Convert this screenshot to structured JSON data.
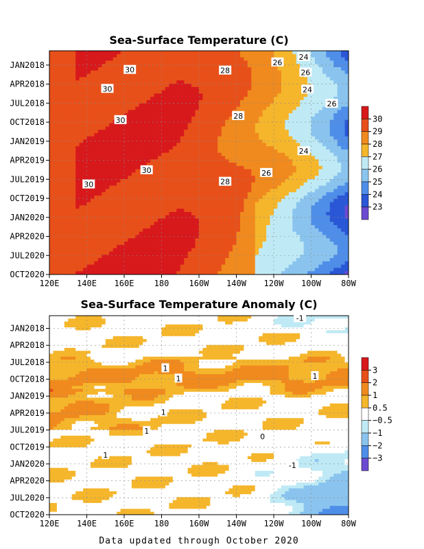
{
  "footer": "Data updated through October 2020",
  "chart_data": [
    {
      "type": "heatmap",
      "title": "Sea-Surface Temperature (C)",
      "x_ticks": [
        "120E",
        "140E",
        "160E",
        "180",
        "160W",
        "140W",
        "120W",
        "100W",
        "80W"
      ],
      "y_ticks": [
        "JAN2018",
        "APR2018",
        "JUL2018",
        "OCT2018",
        "JAN2019",
        "APR2019",
        "JUL2019",
        "OCT2019",
        "JAN2020",
        "APR2020",
        "JUL2020",
        "OCT2020"
      ],
      "colorbar": {
        "labels": [
          "30",
          "29",
          "28",
          "27",
          "26",
          "25",
          "24",
          "23"
        ],
        "colors": [
          "#d7191c",
          "#e8501a",
          "#f08a1e",
          "#f5b62c",
          "#bfeaf5",
          "#8ac4ee",
          "#4f8ee8",
          "#2a57d6",
          "#6a4bd0"
        ]
      },
      "contour_labels": [
        {
          "text": "24",
          "lon": -104,
          "t": 0.9
        },
        {
          "text": "26",
          "lon": -118,
          "t": 1.7
        },
        {
          "text": "28",
          "lon": -146,
          "t": 2.9
        },
        {
          "text": "30",
          "lon": 163,
          "t": 2.8
        },
        {
          "text": "26",
          "lon": -103,
          "t": 3.2
        },
        {
          "text": "30",
          "lon": 151,
          "t": 5.6
        },
        {
          "text": "24",
          "lon": -102,
          "t": 5.7
        },
        {
          "text": "26",
          "lon": -89,
          "t": 7.8
        },
        {
          "text": "28",
          "lon": -139,
          "t": 9.6
        },
        {
          "text": "30",
          "lon": 158,
          "t": 10.2
        },
        {
          "text": "24",
          "lon": -104,
          "t": 14.8
        },
        {
          "text": "30",
          "lon": 172,
          "t": 17.6
        },
        {
          "text": "26",
          "lon": -124,
          "t": 18.0
        },
        {
          "text": "28",
          "lon": -146,
          "t": 19.3
        },
        {
          "text": "30",
          "lon": 141,
          "t": 19.7
        }
      ]
    },
    {
      "type": "heatmap",
      "title": "Sea-Surface Temperature Anomaly (C)",
      "x_ticks": [
        "120E",
        "140E",
        "160E",
        "180",
        "160W",
        "140W",
        "120W",
        "100W",
        "80W"
      ],
      "y_ticks": [
        "JAN2018",
        "APR2018",
        "JUL2018",
        "OCT2018",
        "JAN2019",
        "APR2019",
        "JUL2019",
        "OCT2019",
        "JAN2020",
        "APR2020",
        "JUL2020",
        "OCT2020"
      ],
      "colorbar": {
        "labels": [
          "3",
          "2",
          "1",
          "0.5",
          "−0.5",
          "−1",
          "−2",
          "−3"
        ],
        "colors": [
          "#d7191c",
          "#e8501a",
          "#f08a1e",
          "#f5b62c",
          "#ffffff",
          "#bfeaf5",
          "#8ac4ee",
          "#4f8ee8",
          "#6a4bd0"
        ]
      },
      "contour_labels": [
        {
          "text": "-1",
          "lon": -106,
          "t": 0.4
        },
        {
          "text": "1",
          "lon": -178,
          "t": 8.7
        },
        {
          "text": "1",
          "lon": -98,
          "t": 10.0
        },
        {
          "text": "1",
          "lon": -171,
          "t": 10.4
        },
        {
          "text": "1",
          "lon": -179,
          "t": 16.0
        },
        {
          "text": "1",
          "lon": 172,
          "t": 19.1
        },
        {
          "text": "0",
          "lon": -126,
          "t": 20.0
        },
        {
          "text": "1",
          "lon": 150,
          "t": 23.1
        },
        {
          "text": "-1",
          "lon": -110,
          "t": 24.8
        }
      ]
    }
  ]
}
